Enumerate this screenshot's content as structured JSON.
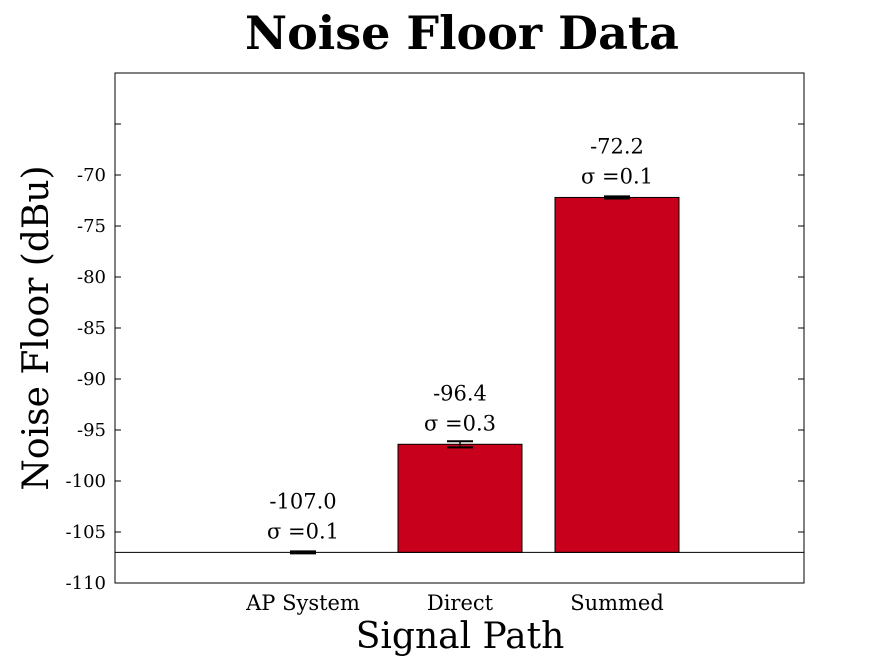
{
  "chart_data": {
    "type": "bar",
    "title": "Noise Floor Data",
    "xlabel": "Signal Path",
    "ylabel": "Noise Floor (dBu)",
    "categories": [
      "AP System",
      "Direct",
      "Summed"
    ],
    "values": [
      -107.0,
      -96.4,
      -72.2
    ],
    "errors": [
      0.1,
      0.3,
      0.1
    ],
    "value_labels": [
      "-107.0",
      "-96.4",
      "-72.2"
    ],
    "sigma_labels": [
      "σ =0.1",
      "σ =0.3",
      "σ =0.1"
    ],
    "ylim": [
      -110,
      -60
    ],
    "yticks": [
      -110,
      -105,
      -100,
      -95,
      -90,
      -85,
      -80,
      -75,
      -70
    ],
    "ytick_labels": [
      "-110",
      "-105",
      "-100",
      "-95",
      "-90",
      "-85",
      "-80",
      "-75",
      "-70"
    ],
    "baseline": -107,
    "grid": false,
    "bar_color": "#c8001c"
  }
}
